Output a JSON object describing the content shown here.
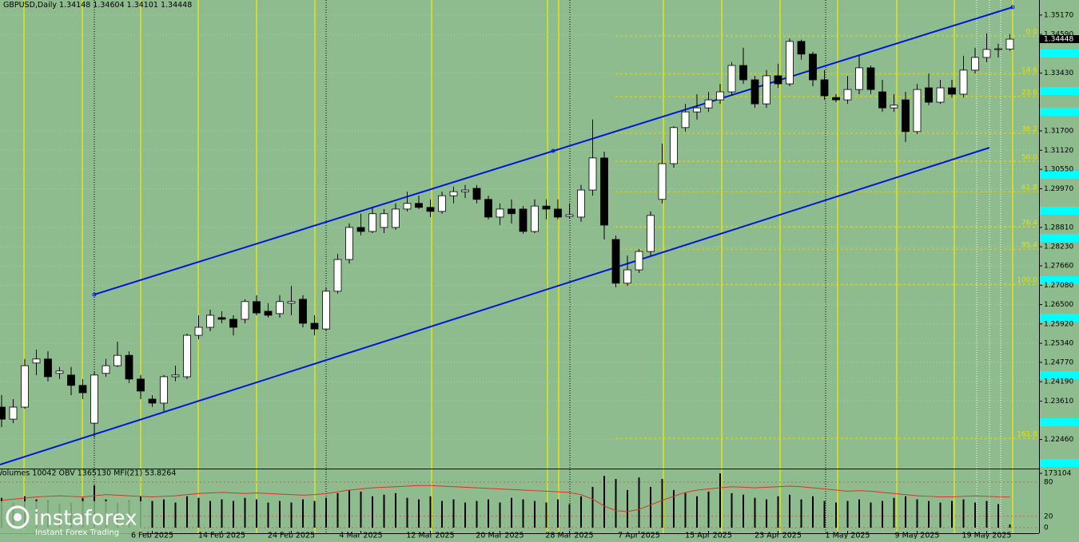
{
  "chart_data": [
    {
      "type": "candlestick",
      "title": "GBPUSD,Daily",
      "categories": [
        null,
        null,
        null,
        null,
        null,
        null,
        null,
        null,
        null,
        null,
        null,
        null,
        null,
        "6 Feb 2025",
        null,
        null,
        null,
        null,
        null,
        "14 Feb 2025",
        null,
        null,
        null,
        null,
        null,
        "24 Feb 2025",
        null,
        null,
        null,
        null,
        null,
        "4 Mar 2025",
        null,
        null,
        null,
        null,
        null,
        "12 Mar 2025",
        null,
        null,
        null,
        null,
        null,
        "20 Mar 2025",
        null,
        null,
        null,
        null,
        null,
        "28 Mar 2025",
        null,
        null,
        null,
        null,
        null,
        "7 Apr 2025",
        null,
        null,
        null,
        null,
        null,
        "15 Apr 2025",
        null,
        null,
        null,
        null,
        null,
        "23 Apr 2025",
        null,
        null,
        null,
        null,
        null,
        "1 May 2025",
        null,
        null,
        null,
        null,
        null,
        "9 May 2025",
        null,
        null,
        null,
        null,
        null,
        "19 May 2025",
        null,
        null
      ],
      "open": [
        1.2343,
        1.2307,
        1.2343,
        1.2475,
        1.2487,
        1.2444,
        1.2439,
        1.2408,
        1.2295,
        1.2444,
        1.2467,
        1.2498,
        1.2427,
        1.2367,
        1.2355,
        1.2434,
        1.2434,
        1.2558,
        1.2582,
        1.2611,
        1.2606,
        1.2606,
        1.2659,
        1.263,
        1.2623,
        1.2654,
        1.2666,
        1.2594,
        1.2577,
        1.269,
        1.2785,
        1.2881,
        1.2869,
        1.2881,
        1.2881,
        1.2936,
        1.2953,
        1.2941,
        1.2929,
        1.2976,
        1.2988,
        1.2998,
        1.2965,
        1.2912,
        1.2936,
        1.2936,
        1.2869,
        1.2945,
        1.2936,
        1.2914,
        1.2912,
        1.2993,
        1.3089,
        1.2845,
        1.2714,
        1.2754,
        1.2809,
        1.2965,
        1.3072,
        1.318,
        1.3227,
        1.3239,
        1.3263,
        1.3287,
        1.3366,
        1.3323,
        1.3251,
        1.3335,
        1.3311,
        1.3438,
        1.34,
        1.3323,
        1.327,
        1.3263,
        1.3294,
        1.3359,
        1.3287,
        1.3239,
        1.3263,
        1.3168,
        1.3299,
        1.3256,
        1.3299,
        1.328,
        1.3352,
        1.339,
        1.3414,
        1.34148
      ],
      "high": [
        1.2379,
        1.2367,
        1.2487,
        1.2515,
        1.251,
        1.2463,
        1.2463,
        1.2427,
        1.2451,
        1.2487,
        1.2539,
        1.251,
        1.2439,
        1.2379,
        1.2439,
        1.2467,
        1.2563,
        1.2618,
        1.2635,
        1.263,
        1.2618,
        1.2666,
        1.2678,
        1.2654,
        1.2678,
        1.2706,
        1.2678,
        1.2618,
        1.2702,
        1.2802,
        1.2893,
        1.2922,
        1.2941,
        1.2936,
        1.2953,
        1.2988,
        1.2976,
        1.2965,
        1.2988,
        1.3003,
        1.3008,
        1.3008,
        1.2976,
        1.2953,
        1.2965,
        1.2945,
        1.2965,
        1.2965,
        1.2965,
        1.2953,
        1.3008,
        1.3204,
        1.3108,
        1.2857,
        1.2797,
        1.2816,
        1.2929,
        1.3132,
        1.3184,
        1.3251,
        1.328,
        1.3287,
        1.3311,
        1.3376,
        1.3419,
        1.3335,
        1.3352,
        1.3371,
        1.3447,
        1.3443,
        1.3407,
        1.3352,
        1.328,
        1.3335,
        1.3395,
        1.3366,
        1.3323,
        1.328,
        1.3287,
        1.3311,
        1.3342,
        1.3323,
        1.3323,
        1.3395,
        1.3419,
        1.3462,
        1.3431,
        1.34604
      ],
      "low": [
        1.2283,
        1.2295,
        1.2338,
        1.2439,
        1.242,
        1.2427,
        1.2379,
        1.2367,
        1.2252,
        1.2434,
        1.2463,
        1.2415,
        1.2367,
        1.2343,
        1.2331,
        1.242,
        1.2427,
        1.2546,
        1.257,
        1.2594,
        1.2558,
        1.2594,
        1.2618,
        1.2611,
        1.2611,
        1.2618,
        1.2582,
        1.2558,
        1.257,
        1.2683,
        1.2773,
        1.2857,
        1.2864,
        1.2864,
        1.2874,
        1.2929,
        1.2936,
        1.2912,
        1.2922,
        1.2953,
        1.2969,
        1.2953,
        1.2905,
        1.2888,
        1.2893,
        1.2862,
        1.2864,
        1.2905,
        1.2905,
        1.2907,
        1.2898,
        1.2976,
        1.2845,
        1.2702,
        1.2706,
        1.2745,
        1.2797,
        1.2953,
        1.306,
        1.3168,
        1.3204,
        1.3227,
        1.3251,
        1.3275,
        1.3311,
        1.3239,
        1.3239,
        1.3299,
        1.3304,
        1.3383,
        1.3304,
        1.3263,
        1.3256,
        1.3251,
        1.328,
        1.328,
        1.3227,
        1.3227,
        1.3137,
        1.3161,
        1.3247,
        1.3251,
        1.327,
        1.327,
        1.3342,
        1.3376,
        1.339,
        1.34101
      ],
      "close": [
        1.2307,
        1.2343,
        1.2467,
        1.2487,
        1.2434,
        1.2451,
        1.2408,
        1.2386,
        1.2439,
        1.2467,
        1.2498,
        1.2427,
        1.2391,
        1.2355,
        1.2434,
        1.2439,
        1.2558,
        1.2582,
        1.2618,
        1.2606,
        1.2582,
        1.2659,
        1.2625,
        1.2618,
        1.2659,
        1.2659,
        1.2594,
        1.2577,
        1.269,
        1.2785,
        1.2881,
        1.2869,
        1.2922,
        1.2922,
        1.2936,
        1.2953,
        1.2941,
        1.2929,
        1.2976,
        1.2988,
        1.2993,
        1.2965,
        1.2912,
        1.2936,
        1.2922,
        1.2869,
        1.2945,
        1.2936,
        1.2912,
        1.2919,
        1.2993,
        1.3089,
        1.2888,
        1.2714,
        1.2754,
        1.2809,
        1.2917,
        1.3072,
        1.318,
        1.3227,
        1.3239,
        1.3263,
        1.3287,
        1.3366,
        1.3323,
        1.3251,
        1.3335,
        1.3311,
        1.3438,
        1.34,
        1.3323,
        1.3275,
        1.3263,
        1.3294,
        1.3359,
        1.3294,
        1.3239,
        1.3247,
        1.3168,
        1.3294,
        1.3256,
        1.3299,
        1.328,
        1.3352,
        1.339,
        1.3414,
        1.3416,
        1.34448
      ],
      "up_color": "#ffffff",
      "down_color": "#000000",
      "ylim": [
        1.2159,
        1.3562
      ],
      "yticks": [
        {
          "value": 1.3517,
          "label": "1.35170"
        },
        {
          "value": 1.3459,
          "label": "1.34590"
        },
        {
          "value": 1.3343,
          "label": "1.33430"
        },
        {
          "value": 1.317,
          "label": "1.31700"
        },
        {
          "value": 1.3112,
          "label": "1.31120"
        },
        {
          "value": 1.3055,
          "label": "1.30550"
        },
        {
          "value": 1.2997,
          "label": "1.29970"
        },
        {
          "value": 1.2881,
          "label": "1.28810"
        },
        {
          "value": 1.2823,
          "label": "1.28230"
        },
        {
          "value": 1.2766,
          "label": "1.27660"
        },
        {
          "value": 1.2708,
          "label": "1.27080"
        },
        {
          "value": 1.265,
          "label": "1.26500"
        },
        {
          "value": 1.2592,
          "label": "1.25920"
        },
        {
          "value": 1.2534,
          "label": "1.25340"
        },
        {
          "value": 1.2477,
          "label": "1.24770"
        },
        {
          "value": 1.2419,
          "label": "1.24190"
        },
        {
          "value": 1.2361,
          "label": "1.23610"
        },
        {
          "value": 1.2246,
          "label": "1.22460"
        }
      ],
      "fib_levels": [
        {
          "label": "0.0",
          "price": 1.3454
        },
        {
          "label": "14.6",
          "price": 1.334
        },
        {
          "label": "23.6",
          "price": 1.3273
        },
        {
          "label": "38.2",
          "price": 1.3163
        },
        {
          "label": "50.0",
          "price": 1.3079
        },
        {
          "label": "61.8",
          "price": 1.2988
        },
        {
          "label": "76.4",
          "price": 1.2883
        },
        {
          "label": "85.4",
          "price": 1.2816
        },
        {
          "label": "100.0",
          "price": 1.2711
        },
        {
          "label": "161.8",
          "price": 1.225
        }
      ],
      "fib_color": "#e8e000",
      "grid": true
    },
    {
      "type": "bar",
      "title": "Volumes 10042  OBV 1365130  MFI(21) 53.8264",
      "series": [
        {
          "type": "bar",
          "color": "#000000",
          "values": [
            95000,
            80000,
            100000,
            90000,
            85000,
            75000,
            80000,
            95000,
            135000,
            90000,
            80000,
            85000,
            100000,
            85000,
            90000,
            80000,
            100000,
            95000,
            85000,
            90000,
            85000,
            95000,
            90000,
            80000,
            85000,
            80000,
            90000,
            85000,
            95000,
            110000,
            120000,
            115000,
            100000,
            105000,
            110000,
            95000,
            90000,
            100000,
            85000,
            90000,
            80000,
            85000,
            90000,
            80000,
            95000,
            90000,
            85000,
            80000,
            90000,
            75000,
            100000,
            130000,
            165000,
            155000,
            120000,
            160000,
            130000,
            155000,
            120000,
            110000,
            100000,
            115000,
            173104,
            110000,
            105000,
            95000,
            90000,
            100000,
            105000,
            90000,
            100000,
            85000,
            80000,
            85000,
            90000,
            80000,
            85000,
            95000,
            100000,
            90000,
            85000,
            80000,
            85000,
            90000,
            80000,
            85000,
            75000,
            10042
          ]
        },
        {
          "type": "line",
          "axis": "y2",
          "color": "#e03020",
          "values": [
            48,
            50,
            52,
            54,
            55,
            56,
            55,
            54,
            56,
            58,
            57,
            56,
            55,
            54,
            55,
            56,
            58,
            60,
            61,
            62,
            61,
            60,
            61,
            60,
            59,
            58,
            57,
            58,
            60,
            63,
            66,
            68,
            70,
            71,
            72,
            73,
            74,
            74,
            73,
            72,
            71,
            70,
            69,
            68,
            67,
            66,
            65,
            64,
            63,
            62,
            58,
            50,
            38,
            30,
            28,
            32,
            40,
            48,
            55,
            62,
            66,
            68,
            70,
            72,
            71,
            70,
            71,
            72,
            73,
            72,
            70,
            68,
            66,
            64,
            65,
            64,
            62,
            60,
            58,
            56,
            55,
            54,
            54,
            55,
            56,
            55,
            54,
            53.8264
          ]
        }
      ],
      "ylim": [
        0,
        173104
      ],
      "yticks": [
        173104
      ],
      "y2lim": [
        0,
        100
      ],
      "y2ticks": [
        0,
        20,
        80
      ]
    }
  ],
  "watermark": {
    "brand": "instaforex",
    "tagline": "Instant Forex Trading"
  }
}
